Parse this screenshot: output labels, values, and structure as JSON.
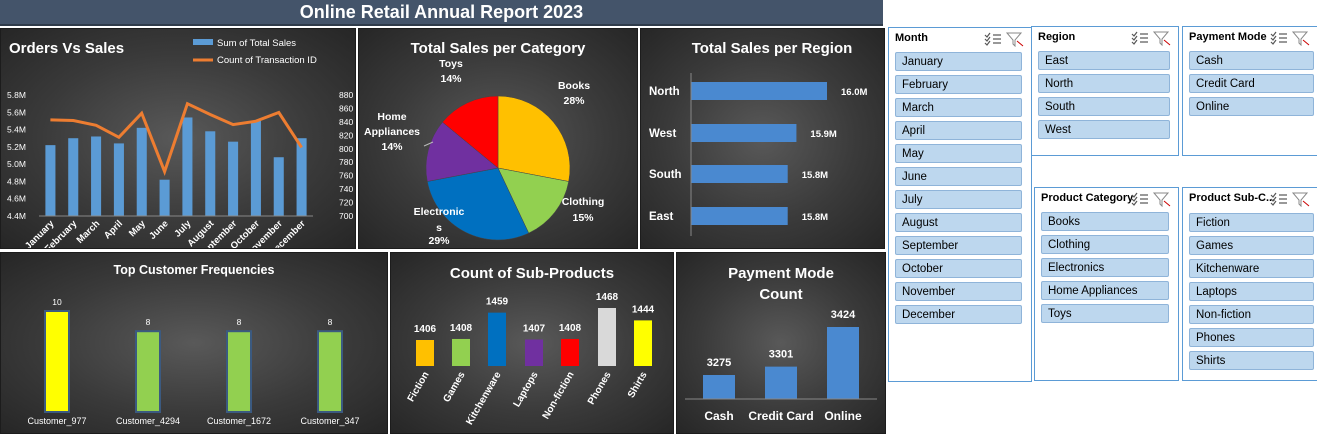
{
  "report": {
    "title": "Online Retail Annual Report 2023"
  },
  "colors": {
    "blue": "#5b9bd5",
    "orange": "#ed7d31",
    "bar_blue": "#4a89d0"
  },
  "chart_data": [
    {
      "id": "orders_vs_sales",
      "type": "bar",
      "title": "Orders Vs Sales",
      "categories": [
        "January",
        "February",
        "March",
        "April",
        "May",
        "June",
        "July",
        "August",
        "September",
        "October",
        "November",
        "December"
      ],
      "series": [
        {
          "name": "Sum of Total Sales",
          "type": "bar",
          "axis": "left",
          "values": [
            5.22,
            5.3,
            5.32,
            5.24,
            5.42,
            4.82,
            5.54,
            5.38,
            5.26,
            5.5,
            5.08,
            5.3
          ]
        },
        {
          "name": "Count of Transaction ID",
          "type": "line",
          "axis": "right",
          "values": [
            843,
            842,
            835,
            817,
            853,
            766,
            867,
            851,
            836,
            841,
            854,
            802
          ]
        }
      ],
      "y_left": {
        "ticks": [
          "4.4M",
          "4.6M",
          "4.8M",
          "5.0M",
          "5.2M",
          "5.4M",
          "5.6M",
          "5.8M"
        ],
        "min": 4.4,
        "max": 5.8
      },
      "y_right": {
        "ticks": [
          "700",
          "720",
          "740",
          "760",
          "780",
          "800",
          "820",
          "840",
          "860",
          "880"
        ],
        "min": 700,
        "max": 880
      },
      "legend": "top-right"
    },
    {
      "id": "sales_per_category",
      "type": "pie",
      "title": "Total Sales per Category",
      "slices": [
        {
          "label": "Books",
          "pct": "28%",
          "value": 28,
          "color": "#ffc000"
        },
        {
          "label": "Clothing",
          "pct": "15%",
          "value": 15,
          "color": "#92d050"
        },
        {
          "label": "Electronics",
          "pct": "29%",
          "value": 29,
          "color": "#0070c0"
        },
        {
          "label": "Home Appliances",
          "pct": "14%",
          "value": 14,
          "color": "#7030a0"
        },
        {
          "label": "Toys",
          "pct": "14%",
          "value": 14,
          "color": "#ff0000"
        }
      ]
    },
    {
      "id": "sales_per_region",
      "type": "bar",
      "orientation": "horizontal",
      "title": "Total Sales per Region",
      "categories": [
        "North",
        "West",
        "South",
        "East"
      ],
      "values": [
        16.0,
        15.9,
        15.8,
        15.8
      ],
      "labels": [
        "16.0M",
        "15.9M",
        "15.8M",
        "15.8M"
      ]
    },
    {
      "id": "top_customer_frequencies",
      "type": "bar",
      "title": "Top Customer Frequencies",
      "categories": [
        "Customer_977",
        "Customer_4294",
        "Customer_1672",
        "Customer_347"
      ],
      "values": [
        10,
        8,
        8,
        8
      ],
      "colors": [
        "#ffff00",
        "#92d050",
        "#92d050",
        "#92d050"
      ]
    },
    {
      "id": "count_sub_products",
      "type": "bar",
      "title": "Count of Sub-Products",
      "categories": [
        "Fiction",
        "Games",
        "Kitchenware",
        "Laptops",
        "Non-fiction",
        "Phones",
        "Shirts"
      ],
      "values": [
        1406,
        1408,
        1459,
        1407,
        1408,
        1468,
        1444
      ],
      "colors": [
        "#ffc000",
        "#92d050",
        "#0070c0",
        "#7030a0",
        "#ff0000",
        "#d9d9d9",
        "#ffff00"
      ]
    },
    {
      "id": "payment_mode_count",
      "type": "bar",
      "title": "Payment Mode Count",
      "title_lines": [
        "Payment Mode",
        "Count"
      ],
      "categories": [
        "Cash",
        "Credit Card",
        "Online"
      ],
      "values": [
        3275,
        3301,
        3424
      ]
    }
  ],
  "slicers": {
    "month": {
      "title": "Month",
      "items": [
        "January",
        "February",
        "March",
        "April",
        "May",
        "June",
        "July",
        "August",
        "September",
        "October",
        "November",
        "December"
      ]
    },
    "region": {
      "title": "Region",
      "items": [
        "East",
        "North",
        "South",
        "West"
      ]
    },
    "payment_mode": {
      "title": "Payment Mode",
      "items": [
        "Cash",
        "Credit Card",
        "Online"
      ]
    },
    "product_category": {
      "title": "Product Category",
      "items": [
        "Books",
        "Clothing",
        "Electronics",
        "Home Appliances",
        "Toys"
      ]
    },
    "product_sub_category": {
      "title": "Product Sub-C...",
      "items": [
        "Fiction",
        "Games",
        "Kitchenware",
        "Laptops",
        "Non-fiction",
        "Phones",
        "Shirts"
      ]
    }
  }
}
